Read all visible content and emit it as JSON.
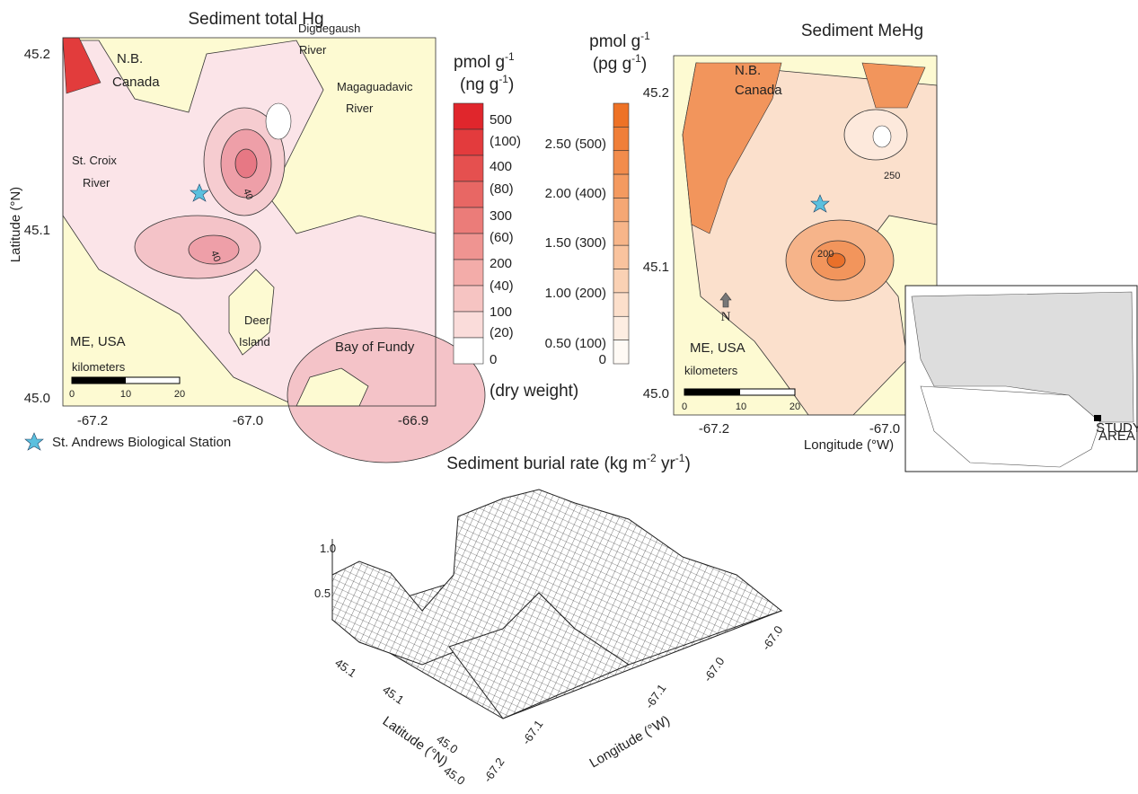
{
  "panel_a": {
    "title": "Sediment total Hg",
    "y_axis_label": "Latitude (°N)",
    "yticks": [
      "45.2",
      "45.1",
      "45.0"
    ],
    "xticks": [
      "-67.2",
      "-67.0",
      "-66.9"
    ],
    "places": [
      "N.B.",
      "Canada",
      "Digdegaush",
      "River",
      "Magaguadavic",
      "River",
      "St. Croix",
      "River",
      "Deer",
      "Island",
      "ME, USA",
      "Bay of Fundy"
    ],
    "contour_labels": [
      "40",
      "40"
    ],
    "scale": {
      "title": "kilometers",
      "ticks": [
        "0",
        "10",
        "20"
      ]
    }
  },
  "legend_thg": {
    "unit": "pmol g",
    "unit_exp": "-1",
    "unit2": "(ng g",
    "unit2_exp": "-1",
    "unit2_close": ")",
    "labels": [
      "500",
      "(100)",
      "400",
      "(80)",
      "300",
      "(60)",
      "200",
      "(40)",
      "100",
      "(20)",
      "0"
    ],
    "note": "(dry weight)"
  },
  "legend_mehg": {
    "unit": "pmol g",
    "unit_exp": "-1",
    "unit2": "(pg g",
    "unit2_exp": "-1",
    "unit2_close": ")",
    "labels": [
      "2.50 (500)",
      "2.00 (400)",
      "1.50 (300)",
      "1.00 (200)",
      "0.50 (100)",
      "0"
    ]
  },
  "panel_b": {
    "title": "Sediment MeHg",
    "yticks": [
      "45.2",
      "45.1",
      "45.0"
    ],
    "xticks": [
      "-67.2",
      "-67.0"
    ],
    "x_axis_label": "Longitude (°W)",
    "places": [
      "N.B.",
      "Canada",
      "ME, USA"
    ],
    "north": "N",
    "contour_labels": [
      "250",
      "200"
    ],
    "scale": {
      "title": "kilometers",
      "ticks": [
        "0",
        "10",
        "20"
      ]
    },
    "inset_label": [
      "STUDY",
      "AREA"
    ]
  },
  "station_legend": "St. Andrews Biological Station",
  "panel_c": {
    "title": "Sediment burial rate (kg m",
    "title_exp1": "-2",
    "title_mid": " yr",
    "title_exp2": "-1",
    "title_close": ")",
    "zticks": [
      "1.0",
      "0.5"
    ],
    "lat_ticks": [
      "45.1",
      "45.1",
      "45.0",
      "45.0"
    ],
    "lon_ticks": [
      "-67.2",
      "-67.1",
      "-67.1",
      "-67.0",
      "-67.0"
    ],
    "lat_label": "Latitude (°N)",
    "lon_label": "Longitude (°W)"
  }
}
